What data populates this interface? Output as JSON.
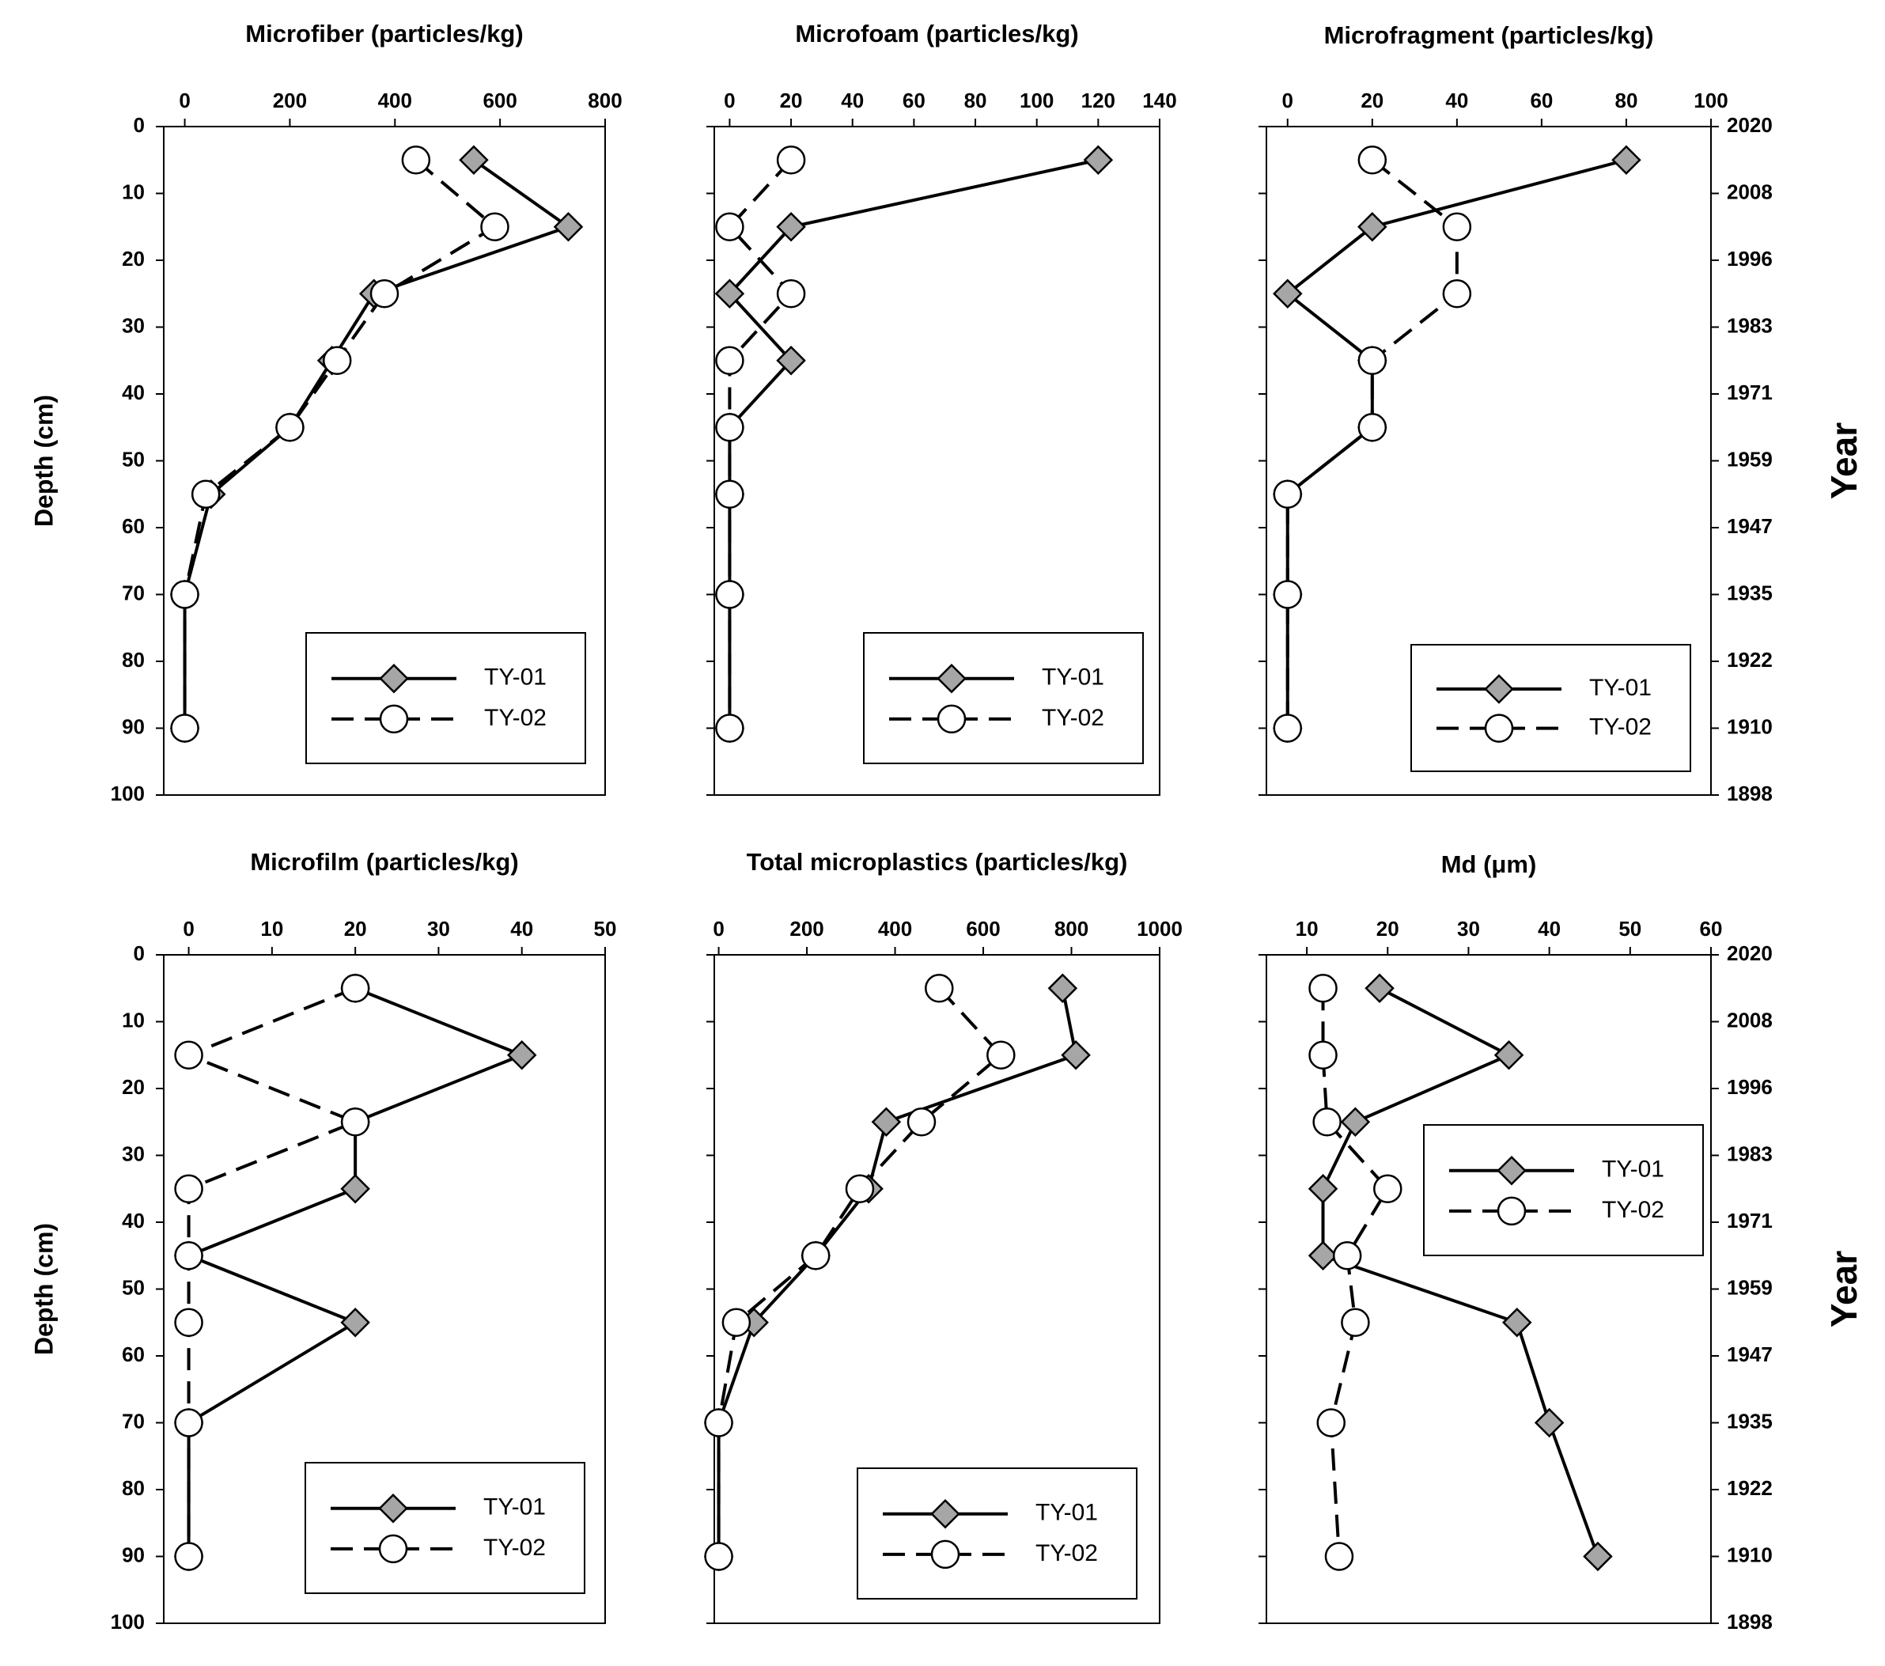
{
  "chart_data": [
    {
      "type": "line",
      "title": "Microfiber (particles/kg)",
      "xlabel": "Microfiber (particles/kg)",
      "ylabel": "Depth (cm)",
      "xlim": [
        -40,
        800
      ],
      "ylim": [
        0,
        100
      ],
      "xticks": [
        0,
        200,
        400,
        600,
        800
      ],
      "yticks": [
        0,
        10,
        20,
        30,
        40,
        50,
        60,
        70,
        80,
        90,
        100
      ],
      "legend": "bottom-right",
      "show_depth_axis_labels": true,
      "show_year_axis": false,
      "series": [
        {
          "name": "TY-01",
          "marker": "diamond",
          "style": "solid",
          "points": [
            [
              550,
              5
            ],
            [
              730,
              15
            ],
            [
              360,
              25
            ],
            [
              280,
              35
            ],
            [
              200,
              45
            ],
            [
              50,
              55
            ],
            [
              0,
              70
            ],
            [
              0,
              90
            ]
          ]
        },
        {
          "name": "TY-02",
          "marker": "circle",
          "style": "dashed",
          "points": [
            [
              440,
              5
            ],
            [
              590,
              15
            ],
            [
              380,
              25
            ],
            [
              290,
              35
            ],
            [
              200,
              45
            ],
            [
              40,
              55
            ],
            [
              0,
              70
            ],
            [
              0,
              90
            ]
          ]
        }
      ]
    },
    {
      "type": "line",
      "title": "Microfoam (particles/kg)",
      "xlabel": "Microfoam (particles/kg)",
      "ylabel": "Depth (cm)",
      "xlim": [
        -5,
        140
      ],
      "ylim": [
        0,
        100
      ],
      "xticks": [
        0,
        20,
        40,
        60,
        80,
        100,
        120,
        140
      ],
      "yticks": [
        0,
        10,
        20,
        30,
        40,
        50,
        60,
        70,
        80,
        90,
        100
      ],
      "legend": "bottom-right",
      "show_depth_axis_labels": false,
      "show_year_axis": false,
      "series": [
        {
          "name": "TY-01",
          "marker": "diamond",
          "style": "solid",
          "points": [
            [
              120,
              5
            ],
            [
              20,
              15
            ],
            [
              0,
              25
            ],
            [
              20,
              35
            ],
            [
              0,
              45
            ],
            [
              0,
              55
            ],
            [
              0,
              70
            ],
            [
              0,
              90
            ]
          ]
        },
        {
          "name": "TY-02",
          "marker": "circle",
          "style": "dashed",
          "points": [
            [
              20,
              5
            ],
            [
              0,
              15
            ],
            [
              20,
              25
            ],
            [
              0,
              35
            ],
            [
              0,
              45
            ],
            [
              0,
              55
            ],
            [
              0,
              70
            ],
            [
              0,
              90
            ]
          ]
        }
      ]
    },
    {
      "type": "line",
      "title": "Microfragment (particles/kg)",
      "xlabel": "Microfragment (particles/kg)",
      "ylabel": "Depth (cm)",
      "xlim": [
        -5,
        100
      ],
      "ylim": [
        0,
        100
      ],
      "xticks": [
        0,
        20,
        40,
        60,
        80,
        100
      ],
      "yticks": [
        0,
        10,
        20,
        30,
        40,
        50,
        60,
        70,
        80,
        90,
        100
      ],
      "legend": "bottom-right",
      "show_depth_axis_labels": false,
      "show_year_axis": true,
      "series": [
        {
          "name": "TY-01",
          "marker": "diamond",
          "style": "solid",
          "points": [
            [
              80,
              5
            ],
            [
              20,
              15
            ],
            [
              0,
              25
            ],
            [
              20,
              35
            ],
            [
              20,
              45
            ],
            [
              0,
              55
            ],
            [
              0,
              70
            ],
            [
              0,
              90
            ]
          ]
        },
        {
          "name": "TY-02",
          "marker": "circle",
          "style": "dashed",
          "points": [
            [
              20,
              5
            ],
            [
              40,
              15
            ],
            [
              40,
              25
            ],
            [
              20,
              35
            ],
            [
              20,
              45
            ],
            [
              0,
              55
            ],
            [
              0,
              70
            ],
            [
              0,
              90
            ]
          ]
        }
      ]
    },
    {
      "type": "line",
      "title": "Microfilm (particles/kg)",
      "xlabel": "Microfilm (particles/kg)",
      "ylabel": "Depth (cm)",
      "xlim": [
        -3,
        50
      ],
      "ylim": [
        0,
        100
      ],
      "xticks": [
        0,
        10,
        20,
        30,
        40,
        50
      ],
      "yticks": [
        0,
        10,
        20,
        30,
        40,
        50,
        60,
        70,
        80,
        90,
        100
      ],
      "legend": "bottom-right",
      "show_depth_axis_labels": true,
      "show_year_axis": false,
      "series": [
        {
          "name": "TY-01",
          "marker": "diamond",
          "style": "solid",
          "points": [
            [
              20,
              5
            ],
            [
              40,
              15
            ],
            [
              20,
              25
            ],
            [
              20,
              35
            ],
            [
              0,
              45
            ],
            [
              20,
              55
            ],
            [
              0,
              70
            ],
            [
              0,
              90
            ]
          ]
        },
        {
          "name": "TY-02",
          "marker": "circle",
          "style": "dashed",
          "points": [
            [
              20,
              5
            ],
            [
              0,
              15
            ],
            [
              20,
              25
            ],
            [
              0,
              35
            ],
            [
              0,
              45
            ],
            [
              0,
              55
            ],
            [
              0,
              70
            ],
            [
              0,
              90
            ]
          ]
        }
      ]
    },
    {
      "type": "line",
      "title": "Total microplastics (particles/kg)",
      "xlabel": "Total microplastics (particles/kg)",
      "ylabel": "Depth (cm)",
      "xlim": [
        -10,
        1000
      ],
      "ylim": [
        0,
        100
      ],
      "xticks": [
        0,
        200,
        400,
        600,
        800,
        1000
      ],
      "yticks": [
        0,
        10,
        20,
        30,
        40,
        50,
        60,
        70,
        80,
        90,
        100
      ],
      "legend": "bottom-right",
      "show_depth_axis_labels": false,
      "show_year_axis": false,
      "series": [
        {
          "name": "TY-01",
          "marker": "diamond",
          "style": "solid",
          "points": [
            [
              780,
              5
            ],
            [
              810,
              15
            ],
            [
              380,
              25
            ],
            [
              340,
              35
            ],
            [
              220,
              45
            ],
            [
              80,
              55
            ],
            [
              0,
              70
            ],
            [
              0,
              90
            ]
          ]
        },
        {
          "name": "TY-02",
          "marker": "circle",
          "style": "dashed",
          "points": [
            [
              500,
              5
            ],
            [
              640,
              15
            ],
            [
              460,
              25
            ],
            [
              320,
              35
            ],
            [
              220,
              45
            ],
            [
              40,
              55
            ],
            [
              0,
              70
            ],
            [
              0,
              90
            ]
          ]
        }
      ]
    },
    {
      "type": "line",
      "title": "Md (μm)",
      "xlabel": "Md (μm)",
      "ylabel": "Depth (cm)",
      "xlim": [
        5,
        60
      ],
      "ylim": [
        0,
        100
      ],
      "xticks": [
        10,
        20,
        30,
        40,
        50,
        60
      ],
      "yticks": [
        0,
        10,
        20,
        30,
        40,
        50,
        60,
        70,
        80,
        90,
        100
      ],
      "legend": "top-right",
      "show_depth_axis_labels": false,
      "show_year_axis": true,
      "series": [
        {
          "name": "TY-01",
          "marker": "diamond",
          "style": "solid",
          "points": [
            [
              19,
              5
            ],
            [
              35,
              15
            ],
            [
              16,
              25
            ],
            [
              12,
              35
            ],
            [
              12,
              45
            ],
            [
              36,
              55
            ],
            [
              40,
              70
            ],
            [
              46,
              90
            ]
          ]
        },
        {
          "name": "TY-02",
          "marker": "circle",
          "style": "dashed",
          "points": [
            [
              12,
              5
            ],
            [
              12,
              15
            ],
            [
              12.5,
              25
            ],
            [
              20,
              35
            ],
            [
              15,
              45
            ],
            [
              16,
              55
            ],
            [
              13,
              70
            ],
            [
              14,
              90
            ]
          ]
        }
      ]
    }
  ],
  "year_axis": {
    "label": "Year",
    "ticks": [
      "2020",
      "2008",
      "1996",
      "1983",
      "1971",
      "1959",
      "1947",
      "1935",
      "1922",
      "1910",
      "1898"
    ]
  },
  "depth_axis_label": "Depth (cm)",
  "colors": {
    "diamond_fill": "#a6a6a6",
    "circle_fill": "#ffffff",
    "line": "#000000"
  }
}
